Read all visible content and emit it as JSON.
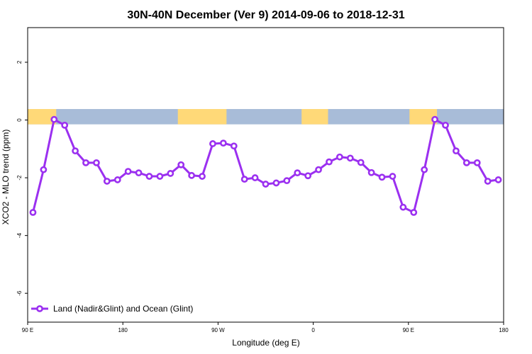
{
  "chart_data": {
    "type": "line",
    "title": "30N-40N December (Ver 9)   2014-09-06 to 2018-12-31",
    "xlabel": "Longitude (deg E)",
    "ylabel": "XCO2 - MLO trend (ppm)",
    "xlim": [
      90,
      540
    ],
    "ylim": [
      -7,
      3.2
    ],
    "x_ticks": [
      {
        "value": 90,
        "label": "90 E"
      },
      {
        "value": 180,
        "label": "180"
      },
      {
        "value": 270,
        "label": "90 W"
      },
      {
        "value": 360,
        "label": "0"
      },
      {
        "value": 450,
        "label": "90 E"
      },
      {
        "value": 540,
        "label": "180"
      }
    ],
    "y_ticks": [
      {
        "value": 2,
        "label": "2"
      },
      {
        "value": 0,
        "label": "0"
      },
      {
        "value": -2,
        "label": "-2"
      },
      {
        "value": -4,
        "label": "-4"
      },
      {
        "value": -6,
        "label": "-6"
      }
    ],
    "grid": false,
    "legend_position": "bottom-left",
    "series": [
      {
        "name": "Land (Nadir&Glint) and Ocean (Glint)",
        "color": "#9b30f0",
        "x": [
          95,
          105,
          115,
          125,
          135,
          145,
          155,
          165,
          175,
          185,
          195,
          205,
          215,
          225,
          235,
          245,
          255,
          265,
          275,
          285,
          295,
          305,
          315,
          325,
          335,
          345,
          355,
          365,
          375,
          385,
          395,
          405,
          415,
          425,
          435,
          445,
          455,
          465,
          475,
          485,
          495,
          505,
          515,
          525,
          535
        ],
        "values": [
          -3.2,
          -1.72,
          0.02,
          -0.18,
          -1.07,
          -1.48,
          -1.48,
          -2.12,
          -2.07,
          -1.78,
          -1.83,
          -1.95,
          -1.95,
          -1.85,
          -1.55,
          -1.92,
          -1.95,
          -0.82,
          -0.8,
          -0.9,
          -2.05,
          -2.0,
          -2.22,
          -2.18,
          -2.1,
          -1.83,
          -1.93,
          -1.72,
          -1.45,
          -1.28,
          -1.32,
          -1.47,
          -1.82,
          -1.98,
          -1.95,
          -3.02,
          -3.2,
          -1.72,
          0.02,
          -0.18,
          -1.07,
          -1.48,
          -1.48,
          -2.12,
          -2.07
        ]
      }
    ],
    "map_strip": {
      "ocean_color": "#a8bcd8",
      "land_color": "#ffd978",
      "y_range": [
        -0.15,
        0.38
      ],
      "land_segments": [
        [
          90,
          117
        ],
        [
          232,
          278
        ],
        [
          349,
          374
        ],
        [
          451,
          477
        ]
      ]
    }
  }
}
